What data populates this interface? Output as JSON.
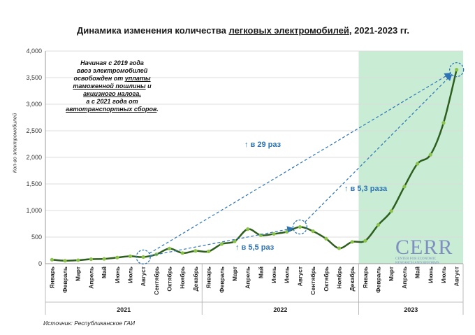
{
  "title_prefix": "Динамика изменения количества ",
  "title_underlined": "легковых электромобилей",
  "title_suffix": ", 2021-2023 гг.",
  "note_line1": "Начиная с 2019 года",
  "note_line2": "ввоз электромобилей",
  "note_line3a": "освобожден от ",
  "note_line3b": "уплаты",
  "note_line4": "таможенной пошлины",
  "note_line4b": " и",
  "note_line5": "акцизного налога,",
  "note_line6": "а с 2021 года от",
  "note_line7": "автотранспортных сборов",
  "note_line7b": ".",
  "source": "Источник: Республиканское ГАИ",
  "logo_text": "CERR",
  "logo_sub1": "CENTER FOR ECONOMIC",
  "logo_sub2": "RESEARCH AND REFORMS",
  "annotations": {
    "a29": "↑ в 29 раз",
    "a53": "↑ в 5,3 раза",
    "a55": "↑ в 5,5 раз"
  },
  "colors": {
    "line": "#2e5e1e",
    "marker": "#8bc34a",
    "highlight": "#c8ecd4",
    "arrow": "#2e74b5"
  },
  "chart_data": {
    "type": "line",
    "title": "Динамика изменения количества легковых электромобилей, 2021-2023 гг.",
    "ylabel": "Кол-во электромобилей",
    "ylim": [
      0,
      4000
    ],
    "yticks": [
      "0",
      "500",
      "1,000",
      "1,500",
      "2,000",
      "2,500",
      "3,000",
      "3,500",
      "4,000"
    ],
    "years": [
      "2021",
      "2022",
      "2023"
    ],
    "categories": [
      "Январь",
      "Февраль",
      "Март",
      "Апрель",
      "Май",
      "Июнь",
      "Июль",
      "Август",
      "Сентябрь",
      "Октябрь",
      "Ноябрь",
      "Декабрь",
      "Январь",
      "Февраль",
      "Март",
      "Апрель",
      "Май",
      "Июнь",
      "Июль",
      "Август",
      "Сентябрь",
      "Октябрь",
      "Ноябрь",
      "Декабрь",
      "Январь",
      "Февраль",
      "Март",
      "Апрель",
      "Май",
      "Июнь",
      "Июль",
      "Август"
    ],
    "series": [
      {
        "name": "Кол-во электромобилей",
        "values": [
          75,
          55,
          65,
          85,
          90,
          115,
          140,
          125,
          175,
          285,
          200,
          240,
          230,
          370,
          420,
          650,
          535,
          560,
          600,
          690,
          610,
          470,
          290,
          410,
          430,
          730,
          990,
          1450,
          1880,
          2050,
          2650,
          3650
        ]
      }
    ]
  }
}
